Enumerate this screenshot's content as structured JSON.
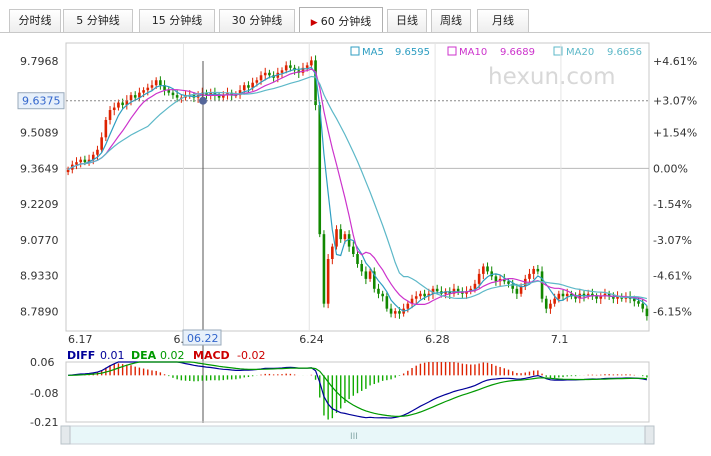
{
  "tabs": [
    {
      "label": "分时线",
      "active": false
    },
    {
      "label": "5 分钟线",
      "active": false
    },
    {
      "label": "15 分钟线",
      "active": false
    },
    {
      "label": "30 分钟线",
      "active": false
    },
    {
      "label": "60 分钟线",
      "active": true
    },
    {
      "label": "日线",
      "active": false
    },
    {
      "label": "周线",
      "active": false
    },
    {
      "label": "月线",
      "active": false
    }
  ],
  "watermark": "hexun.com",
  "legend": [
    {
      "label": "MA5",
      "value": "9.6595",
      "color": "#2f9ec2"
    },
    {
      "label": "MA10",
      "value": "9.6689",
      "color": "#cc33cc"
    },
    {
      "label": "MA20",
      "value": "9.6656",
      "color": "#5db8c8"
    }
  ],
  "crosshair": {
    "price_label": "9.6375",
    "date_label": "06.22",
    "price": 9.6375
  },
  "scrollbar": {
    "grip": "III"
  },
  "chart_data": [
    {
      "type": "candlestick",
      "ylim": [
        8.71,
        9.87
      ],
      "y_ticks_left": [
        "9.7968",
        "9.6375",
        "9.5089",
        "9.3649",
        "9.2209",
        "9.0770",
        "8.9330",
        "8.7890"
      ],
      "y_ticks_left_values": [
        9.7968,
        9.6375,
        9.5089,
        9.3649,
        9.2209,
        9.077,
        8.933,
        8.789
      ],
      "y_ticks_right": [
        "+4.61%",
        "+3.07%",
        "+1.54%",
        "0.00%",
        "-1.54%",
        "-3.07%",
        "-4.61%",
        "-6.15%"
      ],
      "x_ticks": [
        "6.17",
        "6.",
        "6.24",
        "6.28",
        "7.1"
      ],
      "x_tick_positions": [
        0,
        28,
        58,
        88,
        118
      ],
      "prices": [
        9.36,
        9.38,
        9.39,
        9.4,
        9.39,
        9.4,
        9.42,
        9.44,
        9.49,
        9.56,
        9.6,
        9.61,
        9.63,
        9.62,
        9.64,
        9.66,
        9.65,
        9.67,
        9.68,
        9.69,
        9.7,
        9.72,
        9.7,
        9.68,
        9.67,
        9.66,
        9.65,
        9.65,
        9.66,
        9.66,
        9.65,
        9.66,
        9.67,
        9.66,
        9.67,
        9.66,
        9.65,
        9.66,
        9.67,
        9.66,
        9.66,
        9.68,
        9.7,
        9.69,
        9.71,
        9.72,
        9.74,
        9.75,
        9.74,
        9.73,
        9.75,
        9.76,
        9.78,
        9.77,
        9.76,
        9.75,
        9.77,
        9.78,
        9.8,
        9.62,
        9.1,
        8.82,
        9.0,
        9.05,
        9.12,
        9.08,
        9.1,
        9.05,
        9.02,
        8.98,
        8.95,
        8.92,
        8.95,
        8.88,
        8.86,
        8.85,
        8.8,
        8.78,
        8.79,
        8.78,
        8.8,
        8.82,
        8.84,
        8.85,
        8.86,
        8.85,
        8.86,
        8.88,
        8.87,
        8.86,
        8.87,
        8.86,
        8.88,
        8.87,
        8.86,
        8.87,
        8.88,
        8.9,
        8.94,
        8.97,
        8.95,
        8.93,
        8.91,
        8.92,
        8.91,
        8.9,
        8.88,
        8.86,
        8.89,
        8.92,
        8.94,
        8.96,
        8.95,
        8.84,
        8.8,
        8.82,
        8.84,
        8.86,
        8.85,
        8.86,
        8.85,
        8.84,
        8.86,
        8.85,
        8.86,
        8.85,
        8.84,
        8.85,
        8.86,
        8.85,
        8.84,
        8.85,
        8.84,
        8.85,
        8.84,
        8.83,
        8.82,
        8.8,
        8.77
      ],
      "ma_periods": [
        5,
        10,
        20
      ]
    },
    {
      "type": "macd",
      "ylim": [
        -0.21,
        0.06
      ],
      "y_ticks": [
        "0.06",
        "-0.08",
        "-0.21"
      ],
      "y_tick_values": [
        0.06,
        -0.08,
        -0.21
      ],
      "labels": [
        {
          "name": "DIFF",
          "value": "0.01",
          "color": "#000099"
        },
        {
          "name": "DEA",
          "value": "0.02",
          "color": "#009900"
        },
        {
          "name": "MACD",
          "value": "-0.02",
          "color": "#cc0000"
        }
      ]
    }
  ]
}
